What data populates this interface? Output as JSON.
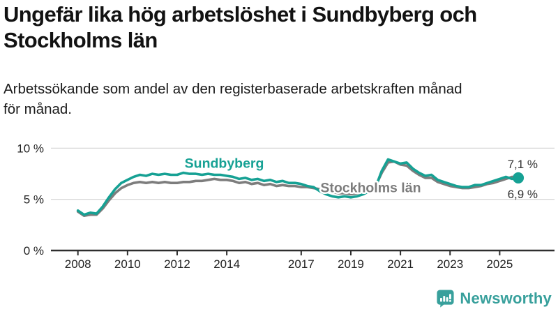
{
  "header": {
    "title_lines": [
      "Ungefär lika hög arbetslöshet i Sundbyberg och",
      "Stockholms län"
    ],
    "subtitle_lines": [
      "Arbetssökande som andel av den registerbaserade arbetskraften månad",
      "för månad."
    ]
  },
  "chart_data": {
    "type": "line",
    "title": "Ungefär lika hög arbetslöshet i Sundbyberg och Stockholms län",
    "subtitle": "Arbetssökande som andel av den registerbaserade arbetskraften månad för månad.",
    "unit": "%",
    "grid": "horizontal",
    "legend": "inline-labels",
    "xlim": [
      2006.9,
      2027.2
    ],
    "ylim": [
      0,
      11.2
    ],
    "x_ticks": [
      {
        "value": 2008,
        "label": "2008"
      },
      {
        "value": 2010,
        "label": "2010"
      },
      {
        "value": 2012,
        "label": "2012"
      },
      {
        "value": 2014,
        "label": "2014"
      },
      {
        "value": 2017,
        "label": "2017"
      },
      {
        "value": 2019,
        "label": "2019"
      },
      {
        "value": 2021,
        "label": "2021"
      },
      {
        "value": 2023,
        "label": "2023"
      },
      {
        "value": 2025,
        "label": "2025"
      }
    ],
    "y_ticks": [
      {
        "value": 0,
        "label": "0 %"
      },
      {
        "value": 5,
        "label": "5 %"
      },
      {
        "value": 10,
        "label": "10 %"
      }
    ],
    "x": [
      2008.0,
      2008.25,
      2008.5,
      2008.75,
      2009.0,
      2009.25,
      2009.5,
      2009.75,
      2010.0,
      2010.25,
      2010.5,
      2010.75,
      2011.0,
      2011.25,
      2011.5,
      2011.75,
      2012.0,
      2012.25,
      2012.5,
      2012.75,
      2013.0,
      2013.25,
      2013.5,
      2013.75,
      2014.0,
      2014.25,
      2014.5,
      2014.75,
      2015.0,
      2015.25,
      2015.5,
      2015.75,
      2016.0,
      2016.25,
      2016.5,
      2016.75,
      2017.0,
      2017.25,
      2017.5,
      2017.75,
      2018.0,
      2018.25,
      2018.5,
      2018.75,
      2019.0,
      2019.25,
      2019.5,
      2019.75,
      2020.0,
      2020.25,
      2020.5,
      2020.75,
      2021.0,
      2021.25,
      2021.5,
      2021.75,
      2022.0,
      2022.25,
      2022.5,
      2022.75,
      2023.0,
      2023.25,
      2023.5,
      2023.75,
      2024.0,
      2024.25,
      2024.5,
      2024.75,
      2025.0,
      2025.25,
      2025.5,
      2025.75
    ],
    "series": [
      {
        "name": "Sundbyberg",
        "color": "#16a194",
        "end_label": "7,1 %",
        "latest_value": 7.1,
        "end_dot": true,
        "label_pos": {
          "x": 2013.9,
          "y": 8.1
        },
        "values": [
          3.9,
          3.5,
          3.7,
          3.6,
          4.3,
          5.2,
          6.0,
          6.6,
          6.9,
          7.2,
          7.4,
          7.3,
          7.5,
          7.4,
          7.5,
          7.4,
          7.4,
          7.6,
          7.5,
          7.5,
          7.4,
          7.5,
          7.4,
          7.4,
          7.3,
          7.2,
          7.0,
          7.1,
          6.9,
          7.0,
          6.8,
          6.9,
          6.7,
          6.8,
          6.6,
          6.6,
          6.5,
          6.3,
          6.2,
          5.8,
          5.5,
          5.3,
          5.2,
          5.3,
          5.2,
          5.3,
          5.5,
          5.8,
          6.2,
          7.8,
          8.9,
          8.7,
          8.5,
          8.6,
          8.0,
          7.6,
          7.3,
          7.4,
          6.9,
          6.7,
          6.5,
          6.3,
          6.2,
          6.2,
          6.4,
          6.4,
          6.6,
          6.8,
          7.0,
          7.2,
          7.0,
          7.1
        ]
      },
      {
        "name": "Stockholms län",
        "color": "#7d7d7d",
        "end_label": "6,9 %",
        "latest_value": 6.9,
        "end_dot": false,
        "label_pos": {
          "x": 2019.8,
          "y": 5.7
        },
        "values": [
          3.8,
          3.4,
          3.5,
          3.5,
          4.1,
          4.9,
          5.6,
          6.1,
          6.4,
          6.6,
          6.7,
          6.6,
          6.7,
          6.6,
          6.7,
          6.6,
          6.6,
          6.7,
          6.7,
          6.8,
          6.8,
          6.9,
          7.0,
          6.9,
          6.9,
          6.8,
          6.6,
          6.7,
          6.5,
          6.6,
          6.4,
          6.5,
          6.3,
          6.4,
          6.3,
          6.3,
          6.2,
          6.2,
          6.1,
          6.0,
          5.9,
          5.7,
          5.6,
          5.6,
          5.5,
          5.6,
          5.7,
          6.0,
          6.3,
          7.6,
          8.6,
          8.7,
          8.4,
          8.3,
          7.8,
          7.4,
          7.1,
          7.1,
          6.7,
          6.5,
          6.3,
          6.2,
          6.1,
          6.1,
          6.2,
          6.3,
          6.5,
          6.6,
          6.8,
          7.0,
          7.2,
          6.9
        ]
      }
    ],
    "colors": {
      "grid": "#d8d8d8",
      "axis": "#2e2e2e",
      "tick_text": "#222222",
      "end_label_text": "#333333"
    }
  },
  "footer": {
    "brand": "Newsworthy"
  }
}
